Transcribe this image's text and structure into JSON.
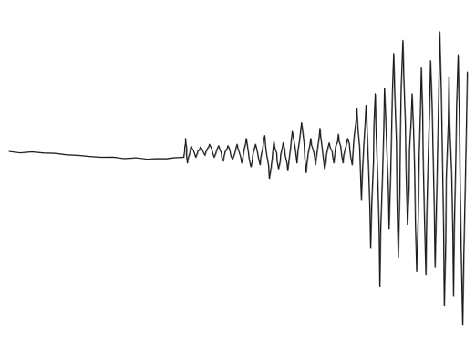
{
  "chart_data": {
    "type": "line",
    "title": "",
    "xlabel": "",
    "ylabel": "",
    "axes_visible": false,
    "grid": false,
    "legend": "none",
    "colors": {
      "trace": "#1a1a1a",
      "background": "#ffffff"
    },
    "xlim": [
      0,
      100
    ],
    "ylim": [
      -100,
      100
    ],
    "series": [
      {
        "points": [
          [
            0,
            0
          ],
          [
            10,
            -1
          ],
          [
            20,
            -3
          ],
          [
            30,
            -4
          ],
          [
            37.9,
            -3
          ],
          [
            38.3,
            9
          ],
          [
            38.7,
            -6
          ],
          [
            39.5,
            4
          ],
          [
            40.5,
            -3
          ],
          [
            41.5,
            3
          ],
          [
            42.5,
            -2
          ],
          [
            43.5,
            5
          ],
          [
            44.5,
            -3
          ],
          [
            45.5,
            4
          ],
          [
            46.5,
            -5
          ],
          [
            47.5,
            4
          ],
          [
            48.5,
            -4
          ],
          [
            49.5,
            5
          ],
          [
            50.5,
            -6
          ],
          [
            51.5,
            9
          ],
          [
            52.5,
            -8
          ],
          [
            53.5,
            5
          ],
          [
            54.5,
            -7
          ],
          [
            55.5,
            11
          ],
          [
            56.5,
            -14
          ],
          [
            57.5,
            7
          ],
          [
            58.5,
            -9
          ],
          [
            59.5,
            6
          ],
          [
            60.5,
            -10
          ],
          [
            61.5,
            14
          ],
          [
            62.5,
            -6
          ],
          [
            63.5,
            20
          ],
          [
            64.5,
            -11
          ],
          [
            65.5,
            9
          ],
          [
            66.5,
            -7
          ],
          [
            67.5,
            16
          ],
          [
            68.5,
            -9
          ],
          [
            69.5,
            6
          ],
          [
            70.5,
            -6
          ],
          [
            71.5,
            12
          ],
          [
            72.5,
            -6
          ],
          [
            73.5,
            9
          ],
          [
            74.5,
            -7
          ],
          [
            75.5,
            30
          ],
          [
            76.5,
            -25
          ],
          [
            77.5,
            32
          ],
          [
            78.5,
            -50
          ],
          [
            79.5,
            40
          ],
          [
            80.5,
            -70
          ],
          [
            81.5,
            44
          ],
          [
            82.5,
            -40
          ],
          [
            83.5,
            68
          ],
          [
            84.5,
            -55
          ],
          [
            85.5,
            77
          ],
          [
            86.5,
            -38
          ],
          [
            87.5,
            40
          ],
          [
            88.5,
            -62
          ],
          [
            89.5,
            58
          ],
          [
            90.5,
            -64
          ],
          [
            91.5,
            63
          ],
          [
            92.5,
            -60
          ],
          [
            93.5,
            83
          ],
          [
            94.5,
            -80
          ],
          [
            95.5,
            52
          ],
          [
            96.5,
            -75
          ],
          [
            97.5,
            67
          ],
          [
            98.5,
            -90
          ],
          [
            99.5,
            55
          ]
        ]
      }
    ]
  }
}
